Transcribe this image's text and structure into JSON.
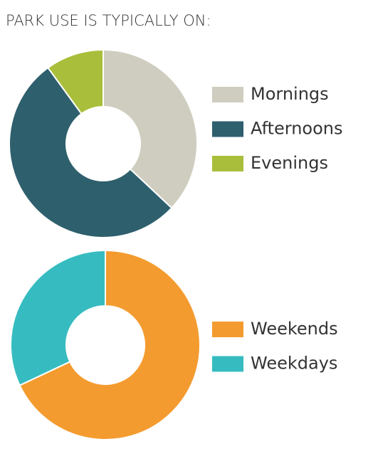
{
  "title": "PARK USE IS TYPICALLY ON:",
  "chart_data": [
    {
      "type": "donut",
      "categories": [
        "Mornings",
        "Afternoons",
        "Evenings"
      ],
      "values": [
        37,
        53,
        10
      ],
      "colors": [
        "#cfcdbf",
        "#2e5f6d",
        "#a9be3a"
      ]
    },
    {
      "type": "donut",
      "categories": [
        "Weekends",
        "Weekdays"
      ],
      "values": [
        68,
        32
      ],
      "colors": [
        "#f49b2f",
        "#36bcc0"
      ]
    }
  ]
}
